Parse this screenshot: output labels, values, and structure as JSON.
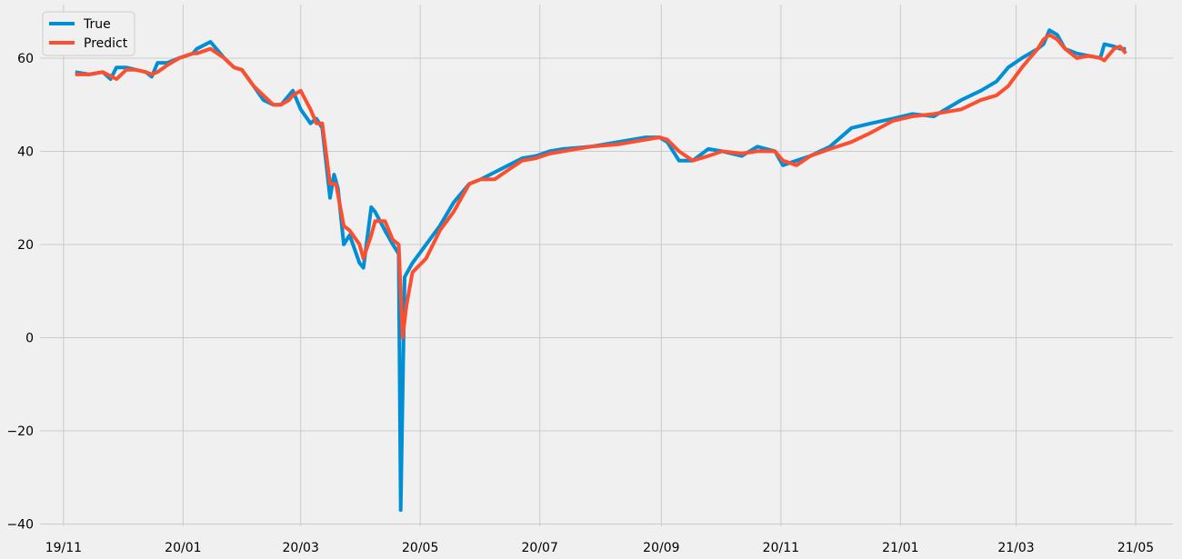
{
  "chart_data": {
    "type": "line",
    "title": "",
    "xlabel": "",
    "ylabel": "",
    "x_tick_labels": [
      "19/11",
      "20/01",
      "20/03",
      "20/05",
      "20/07",
      "20/09",
      "20/11",
      "21/01",
      "21/03",
      "21/05"
    ],
    "x_ticks": [
      "2019-11-01",
      "2020-01-01",
      "2020-03-01",
      "2020-05-01",
      "2020-07-01",
      "2020-09-01",
      "2020-11-01",
      "2021-01-01",
      "2021-03-01",
      "2021-05-01"
    ],
    "xlim": [
      "2019-10-20",
      "2021-05-20"
    ],
    "y_ticks": [
      -40,
      -20,
      0,
      20,
      40,
      60
    ],
    "y_tick_labels": [
      "−40",
      "−20",
      "0",
      "20",
      "40",
      "60"
    ],
    "ylim": [
      -40.5,
      71.5
    ],
    "grid": true,
    "legend": "top-left",
    "series": [
      {
        "name": "True",
        "color": "#008fd5",
        "x": [
          "2019-11-07",
          "2019-11-14",
          "2019-11-21",
          "2019-11-25",
          "2019-11-28",
          "2019-12-03",
          "2019-12-08",
          "2019-12-13",
          "2019-12-16",
          "2019-12-19",
          "2019-12-24",
          "2019-12-30",
          "2020-01-06",
          "2020-01-08",
          "2020-01-15",
          "2020-01-22",
          "2020-01-27",
          "2020-01-31",
          "2020-02-06",
          "2020-02-11",
          "2020-02-16",
          "2020-02-20",
          "2020-02-24",
          "2020-02-26",
          "2020-03-01",
          "2020-03-06",
          "2020-03-09",
          "2020-03-12",
          "2020-03-16",
          "2020-03-18",
          "2020-03-20",
          "2020-03-23",
          "2020-03-26",
          "2020-03-31",
          "2020-04-02",
          "2020-04-06",
          "2020-04-08",
          "2020-04-13",
          "2020-04-17",
          "2020-04-20",
          "2020-04-21",
          "2020-04-23",
          "2020-04-27",
          "2020-05-04",
          "2020-05-11",
          "2020-05-18",
          "2020-05-26",
          "2020-06-01",
          "2020-06-08",
          "2020-06-15",
          "2020-06-22",
          "2020-06-29",
          "2020-07-06",
          "2020-07-13",
          "2020-07-27",
          "2020-08-10",
          "2020-08-24",
          "2020-08-31",
          "2020-09-04",
          "2020-09-10",
          "2020-09-17",
          "2020-09-25",
          "2020-10-02",
          "2020-10-12",
          "2020-10-20",
          "2020-10-29",
          "2020-11-02",
          "2020-11-09",
          "2020-11-16",
          "2020-11-26",
          "2020-12-07",
          "2020-12-17",
          "2020-12-28",
          "2021-01-07",
          "2021-01-18",
          "2021-02-01",
          "2021-02-11",
          "2021-02-19",
          "2021-02-25",
          "2021-03-04",
          "2021-03-08",
          "2021-03-12",
          "2021-03-15",
          "2021-03-18",
          "2021-03-22",
          "2021-03-26",
          "2021-04-01",
          "2021-04-07",
          "2021-04-13",
          "2021-04-15",
          "2021-04-20",
          "2021-04-23",
          "2021-04-26"
        ],
        "y": [
          57,
          56.5,
          57,
          55.5,
          58,
          58,
          57.5,
          57,
          56,
          59,
          59,
          60,
          61,
          62,
          63.5,
          60,
          58,
          57.5,
          54,
          51,
          50,
          50,
          52,
          53,
          49,
          46,
          47,
          45,
          30,
          35,
          32,
          20,
          22,
          16,
          15,
          28,
          27,
          23,
          20,
          18,
          -37,
          13,
          16,
          20,
          24,
          29,
          33,
          34,
          35.5,
          37,
          38.5,
          39,
          40,
          40.5,
          41,
          42,
          43,
          43,
          42,
          38,
          38,
          40.5,
          40,
          39,
          41,
          40,
          37,
          38,
          39,
          41,
          45,
          46,
          47,
          48,
          47.5,
          51,
          53,
          55,
          58,
          60,
          61,
          62,
          63,
          66,
          65,
          62,
          61,
          60.5,
          60,
          63,
          62.5,
          62,
          62
        ]
      },
      {
        "name": "Predict",
        "color": "#fc4f30",
        "x": [
          "2019-11-07",
          "2019-11-14",
          "2019-11-21",
          "2019-11-28",
          "2019-12-03",
          "2019-12-08",
          "2019-12-13",
          "2019-12-16",
          "2019-12-19",
          "2019-12-24",
          "2019-12-30",
          "2020-01-06",
          "2020-01-08",
          "2020-01-15",
          "2020-01-22",
          "2020-01-27",
          "2020-01-31",
          "2020-02-06",
          "2020-02-11",
          "2020-02-16",
          "2020-02-20",
          "2020-02-24",
          "2020-02-26",
          "2020-03-01",
          "2020-03-06",
          "2020-03-09",
          "2020-03-12",
          "2020-03-16",
          "2020-03-19",
          "2020-03-23",
          "2020-03-26",
          "2020-03-31",
          "2020-04-02",
          "2020-04-06",
          "2020-04-08",
          "2020-04-13",
          "2020-04-17",
          "2020-04-20",
          "2020-04-22",
          "2020-04-24",
          "2020-04-27",
          "2020-05-04",
          "2020-05-11",
          "2020-05-18",
          "2020-05-26",
          "2020-06-01",
          "2020-06-08",
          "2020-06-15",
          "2020-06-22",
          "2020-06-29",
          "2020-07-06",
          "2020-07-13",
          "2020-07-27",
          "2020-08-10",
          "2020-08-24",
          "2020-08-31",
          "2020-09-04",
          "2020-09-10",
          "2020-09-17",
          "2020-09-25",
          "2020-10-02",
          "2020-10-12",
          "2020-10-20",
          "2020-10-29",
          "2020-11-02",
          "2020-11-09",
          "2020-11-16",
          "2020-11-26",
          "2020-12-07",
          "2020-12-17",
          "2020-12-28",
          "2021-01-07",
          "2021-01-18",
          "2021-02-01",
          "2021-02-11",
          "2021-02-19",
          "2021-02-25",
          "2021-03-04",
          "2021-03-08",
          "2021-03-12",
          "2021-03-15",
          "2021-03-18",
          "2021-03-22",
          "2021-03-26",
          "2021-04-01",
          "2021-04-07",
          "2021-04-13",
          "2021-04-15",
          "2021-04-20",
          "2021-04-23",
          "2021-04-26"
        ],
        "y": [
          56.5,
          56.5,
          57,
          55.5,
          57.5,
          57.5,
          57,
          56.5,
          57,
          58.5,
          60,
          61,
          61,
          62,
          60,
          58,
          57.5,
          54,
          52,
          50,
          50,
          51,
          52,
          53,
          49,
          46,
          46,
          33,
          33,
          24,
          23,
          20,
          17,
          22,
          25,
          25,
          21,
          20,
          0,
          7,
          14,
          17,
          23,
          27,
          33,
          34,
          34,
          36,
          38,
          38.5,
          39.5,
          40,
          41,
          41.5,
          42.5,
          43,
          42.5,
          40,
          38,
          39,
          40,
          39.5,
          40,
          40,
          38,
          37,
          39,
          40.5,
          42,
          44,
          46.5,
          47.5,
          48,
          49,
          51,
          52,
          54,
          58,
          60,
          62,
          64,
          65,
          64,
          62,
          60,
          60.5,
          60,
          59.5,
          62,
          62.5,
          61
        ]
      }
    ]
  }
}
